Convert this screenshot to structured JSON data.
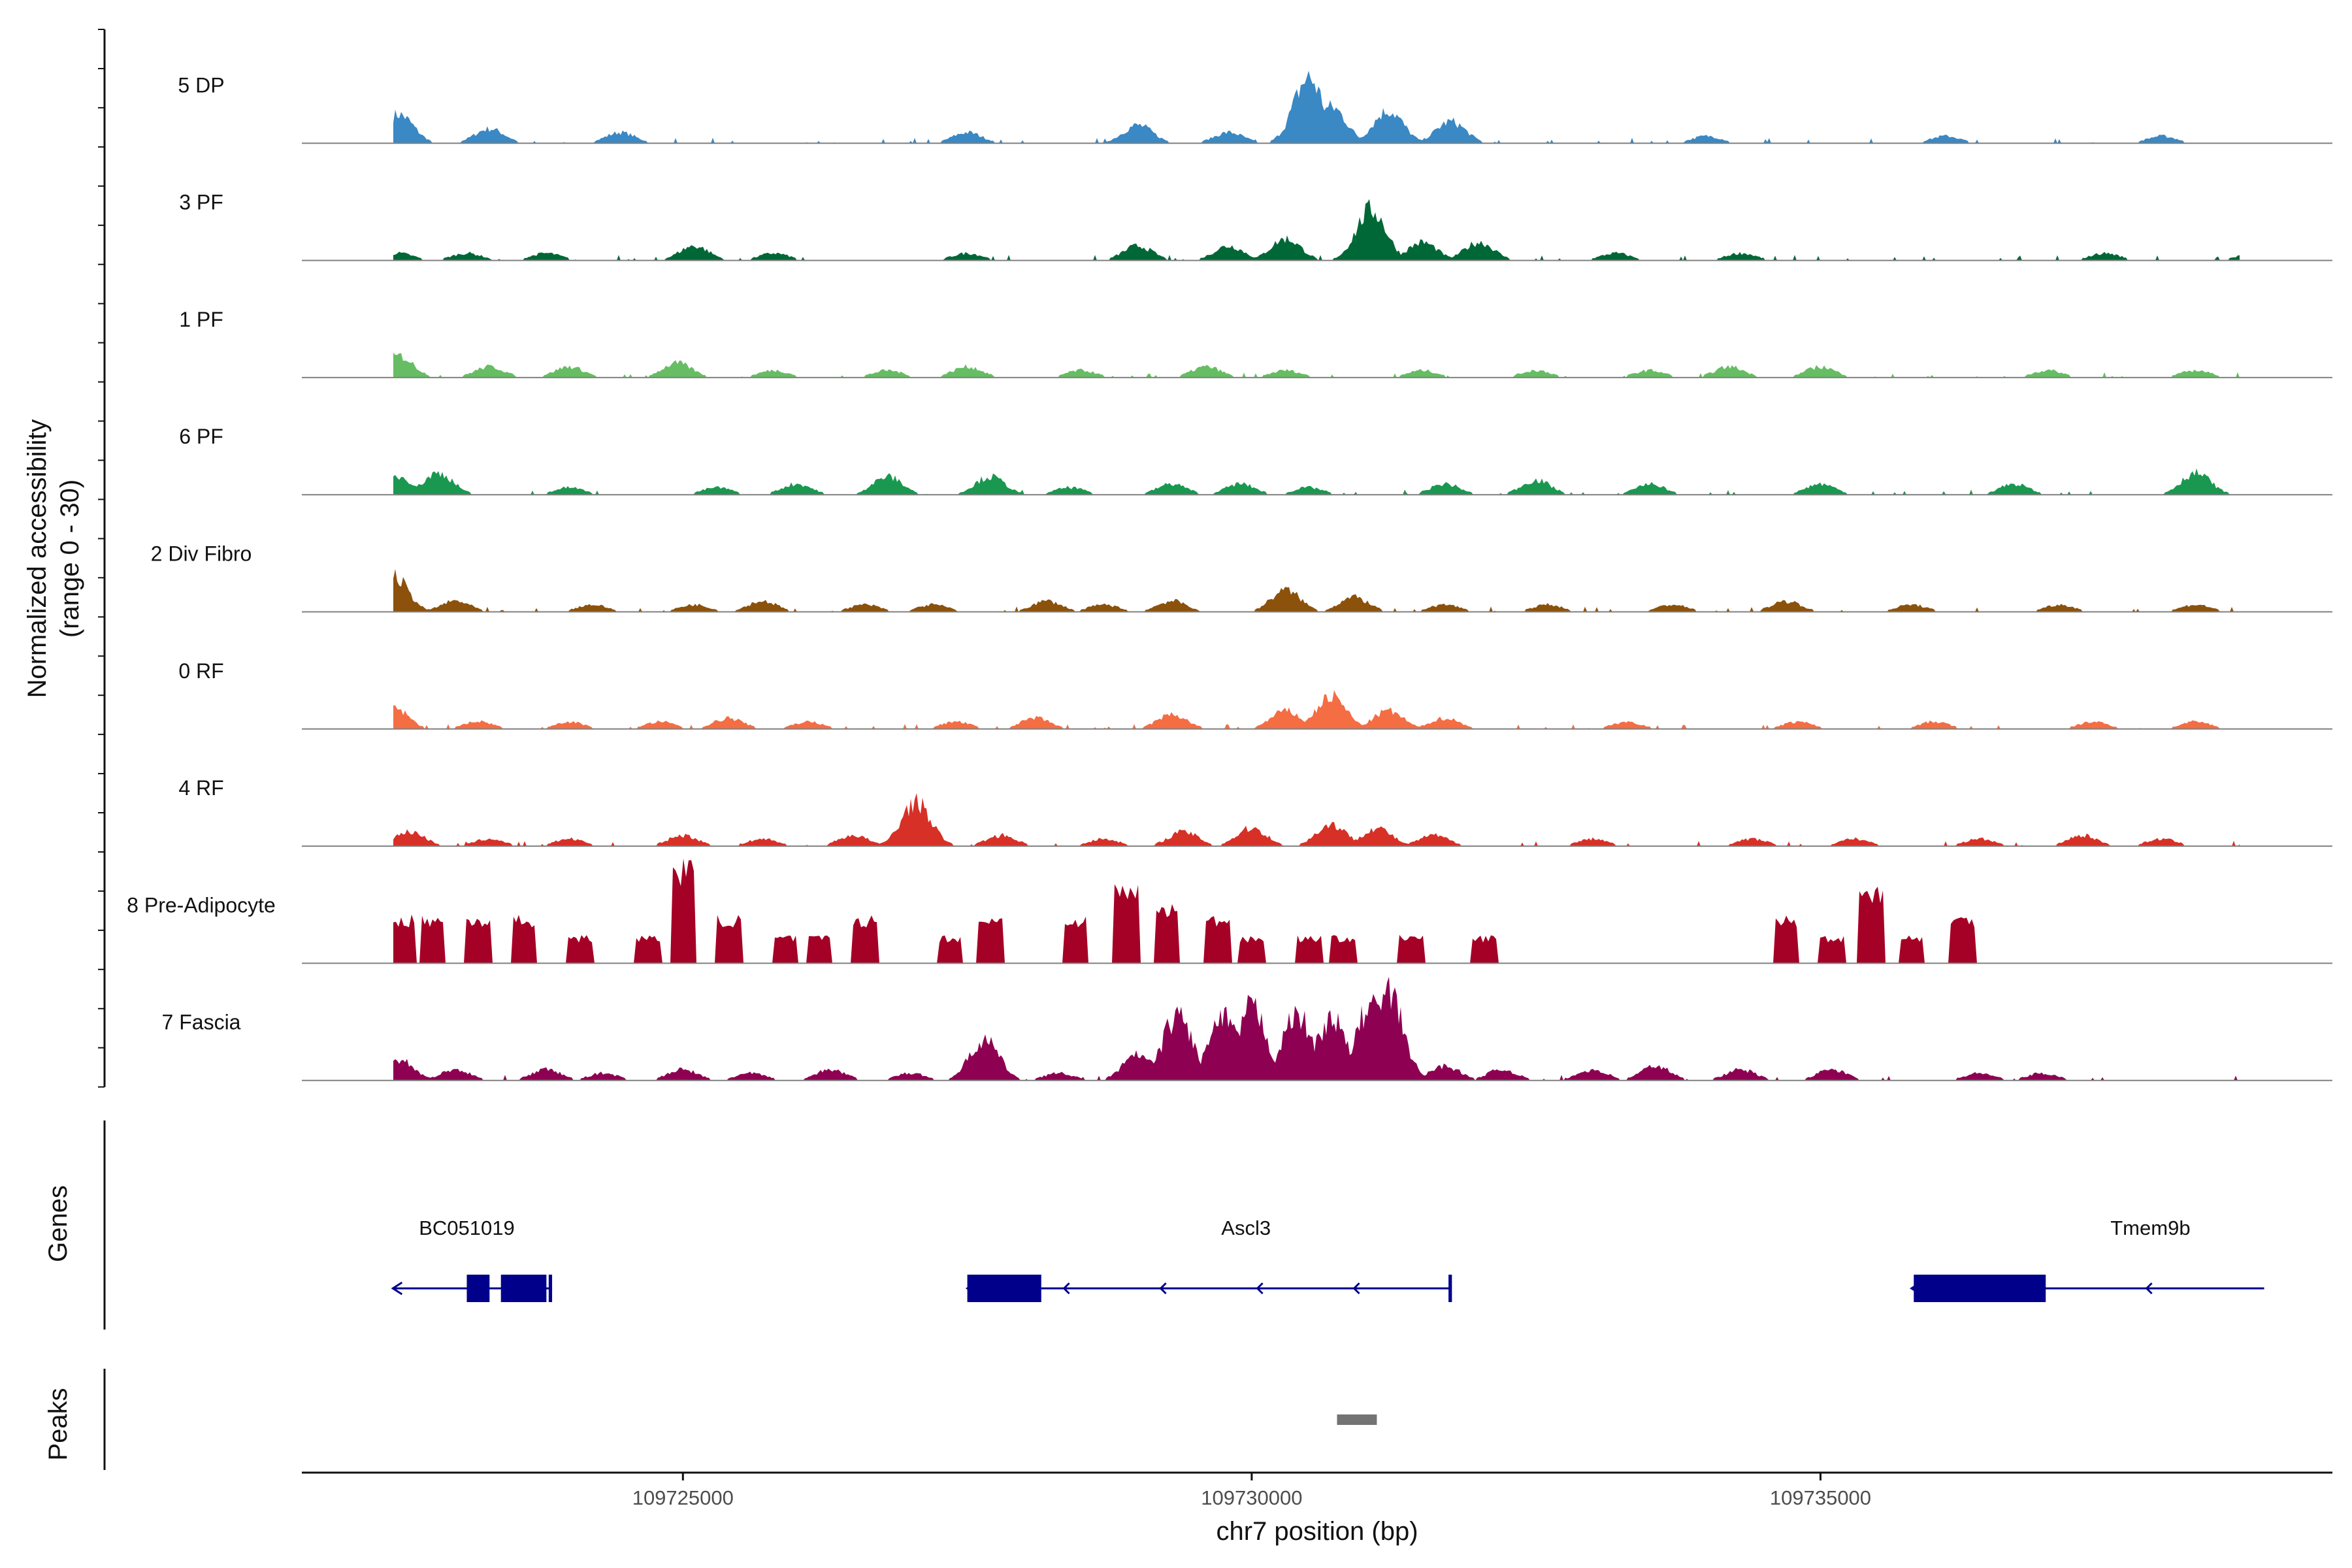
{
  "chart_data": {
    "type": "area",
    "title": "",
    "ylabel_line1": "Normalized accessibility",
    "ylabel_line2": "(range 0 - 30)",
    "xlabel": "chr7 position (bp)",
    "xlim": [
      109721650,
      109739500
    ],
    "xticks": [
      {
        "value": 109725000,
        "label": "109725000"
      },
      {
        "value": 109730000,
        "label": "109730000"
      },
      {
        "value": 109735000,
        "label": "109735000"
      }
    ],
    "ylim": [
      0,
      30
    ],
    "baseline_color": "#808080",
    "tracks": [
      {
        "name": "5 DP",
        "color": "#3A88C4",
        "peaks": [
          [
            109722500,
            8
          ],
          [
            109723300,
            4
          ],
          [
            109724450,
            3
          ],
          [
            109727500,
            3
          ],
          [
            109729000,
            5
          ],
          [
            109729800,
            3
          ],
          [
            109730500,
            18
          ],
          [
            109730700,
            10
          ],
          [
            109731200,
            9
          ],
          [
            109731750,
            6
          ],
          [
            109734000,
            2
          ],
          [
            109736100,
            2
          ],
          [
            109738000,
            2
          ]
        ]
      },
      {
        "name": "3 PF",
        "color": "#006837",
        "peaks": [
          [
            109722500,
            2
          ],
          [
            109723100,
            2
          ],
          [
            109723800,
            2
          ],
          [
            109725100,
            4
          ],
          [
            109725800,
            2
          ],
          [
            109727500,
            2
          ],
          [
            109729000,
            4
          ],
          [
            109729800,
            4
          ],
          [
            109730300,
            6
          ],
          [
            109731050,
            14
          ],
          [
            109731500,
            5
          ],
          [
            109732000,
            5
          ],
          [
            109733200,
            2
          ],
          [
            109734300,
            2
          ],
          [
            109737500,
            2
          ],
          [
            109738800,
            2
          ]
        ]
      },
      {
        "name": "1 PF",
        "color": "#66BD63",
        "peaks": [
          [
            109722500,
            6
          ],
          [
            109723300,
            3
          ],
          [
            109724000,
            3
          ],
          [
            109724950,
            4
          ],
          [
            109725800,
            2
          ],
          [
            109726800,
            2
          ],
          [
            109727500,
            3
          ],
          [
            109728500,
            2
          ],
          [
            109729600,
            3
          ],
          [
            109730300,
            2
          ],
          [
            109731500,
            2
          ],
          [
            109732500,
            2
          ],
          [
            109733500,
            2
          ],
          [
            109734200,
            3
          ],
          [
            109735000,
            3
          ],
          [
            109737000,
            2
          ],
          [
            109738300,
            2
          ]
        ]
      },
      {
        "name": "6 PF",
        "color": "#1A9850",
        "peaks": [
          [
            109722500,
            5
          ],
          [
            109722850,
            6
          ],
          [
            109724000,
            2
          ],
          [
            109725300,
            2
          ],
          [
            109726000,
            3
          ],
          [
            109726800,
            5
          ],
          [
            109727700,
            5
          ],
          [
            109728400,
            2
          ],
          [
            109729300,
            3
          ],
          [
            109729900,
            3
          ],
          [
            109730500,
            2
          ],
          [
            109731700,
            3
          ],
          [
            109732500,
            4
          ],
          [
            109733500,
            3
          ],
          [
            109735000,
            3
          ],
          [
            109736700,
            3
          ],
          [
            109738300,
            6
          ]
        ]
      },
      {
        "name": "2 Div Fibro",
        "color": "#8C510A",
        "peaks": [
          [
            109722450,
            10
          ],
          [
            109723000,
            3
          ],
          [
            109724200,
            2
          ],
          [
            109725100,
            2
          ],
          [
            109725700,
            3
          ],
          [
            109726600,
            2
          ],
          [
            109727200,
            2
          ],
          [
            109728200,
            3
          ],
          [
            109728700,
            2
          ],
          [
            109729300,
            3
          ],
          [
            109730300,
            6
          ],
          [
            109730900,
            4
          ],
          [
            109731700,
            2
          ],
          [
            109732600,
            2
          ],
          [
            109733700,
            2
          ],
          [
            109734700,
            3
          ],
          [
            109735800,
            2
          ],
          [
            109737100,
            2
          ],
          [
            109738300,
            2
          ]
        ]
      },
      {
        "name": "0 RF",
        "color": "#F46D43",
        "peaks": [
          [
            109722450,
            6
          ],
          [
            109723200,
            2
          ],
          [
            109724000,
            2
          ],
          [
            109724800,
            2
          ],
          [
            109725400,
            3
          ],
          [
            109726100,
            2
          ],
          [
            109727400,
            2
          ],
          [
            109728100,
            3
          ],
          [
            109729300,
            4
          ],
          [
            109730300,
            5
          ],
          [
            109730700,
            9
          ],
          [
            109731200,
            5
          ],
          [
            109731700,
            3
          ],
          [
            109733300,
            2
          ],
          [
            109734800,
            2
          ],
          [
            109736000,
            2
          ],
          [
            109737400,
            2
          ],
          [
            109738300,
            2
          ]
        ]
      },
      {
        "name": "4 RF",
        "color": "#D73027",
        "peaks": [
          [
            109722600,
            4
          ],
          [
            109723300,
            2
          ],
          [
            109724000,
            2
          ],
          [
            109725000,
            3
          ],
          [
            109725700,
            2
          ],
          [
            109726500,
            3
          ],
          [
            109727050,
            12
          ],
          [
            109727800,
            3
          ],
          [
            109728700,
            2
          ],
          [
            109729400,
            4
          ],
          [
            109730000,
            5
          ],
          [
            109730700,
            6
          ],
          [
            109731100,
            5
          ],
          [
            109731600,
            3
          ],
          [
            109733000,
            2
          ],
          [
            109734400,
            2
          ],
          [
            109735300,
            2
          ],
          [
            109736400,
            2
          ],
          [
            109737300,
            3
          ],
          [
            109738000,
            2
          ]
        ]
      },
      {
        "name": "8 Pre-Adipocyte",
        "color": "#A50026",
        "peaks": [
          [
            109722550,
            12
          ],
          [
            109722800,
            12
          ],
          [
            109723200,
            12
          ],
          [
            109723600,
            12
          ],
          [
            109724100,
            7
          ],
          [
            109724700,
            7
          ],
          [
            109725000,
            26
          ],
          [
            109725400,
            12
          ],
          [
            109725900,
            7
          ],
          [
            109726200,
            7
          ],
          [
            109726600,
            12
          ],
          [
            109727350,
            7
          ],
          [
            109727700,
            12
          ],
          [
            109728450,
            12
          ],
          [
            109728900,
            20
          ],
          [
            109729250,
            15
          ],
          [
            109729700,
            12
          ],
          [
            109730000,
            7
          ],
          [
            109730500,
            7
          ],
          [
            109730800,
            7
          ],
          [
            109731400,
            7
          ],
          [
            109732050,
            7
          ],
          [
            109734700,
            12
          ],
          [
            109735100,
            7
          ],
          [
            109735450,
            20
          ],
          [
            109735800,
            7
          ],
          [
            109736250,
            12
          ]
        ]
      },
      {
        "name": "7 Fascia",
        "color": "#8E0152",
        "peaks": [
          [
            109722500,
            6
          ],
          [
            109723000,
            3
          ],
          [
            109723800,
            3
          ],
          [
            109724300,
            2
          ],
          [
            109725000,
            3
          ],
          [
            109725600,
            2
          ],
          [
            109726300,
            3
          ],
          [
            109727000,
            2
          ],
          [
            109727650,
            11
          ],
          [
            109728300,
            2
          ],
          [
            109729000,
            7
          ],
          [
            109729350,
            18
          ],
          [
            109729750,
            17
          ],
          [
            109730000,
            20
          ],
          [
            109730400,
            18
          ],
          [
            109730700,
            17
          ],
          [
            109731050,
            21
          ],
          [
            109731200,
            24
          ],
          [
            109731700,
            4
          ],
          [
            109732200,
            3
          ],
          [
            109733000,
            3
          ],
          [
            109733550,
            4
          ],
          [
            109734300,
            3
          ],
          [
            109735100,
            3
          ],
          [
            109736400,
            2
          ],
          [
            109736950,
            2
          ]
        ]
      }
    ],
    "genes_track": {
      "label": "Genes",
      "color": "#00008B",
      "genes": [
        {
          "name": "BC051019",
          "strand": "-",
          "start": 109722450,
          "end": 109723850,
          "exons": [
            [
              109723100,
              109723300
            ],
            [
              109723400,
              109723800
            ],
            [
              109723820,
              109723850
            ]
          ]
        },
        {
          "name": "Ascl3",
          "strand": "-",
          "start": 109727500,
          "end": 109731750,
          "exons": [
            [
              109727500,
              109728150
            ],
            [
              109731730,
              109731760
            ]
          ]
        },
        {
          "name": "Tmem9b",
          "strand": "-",
          "start": 109735800,
          "end": 109738900,
          "exons": [
            [
              109735820,
              109736980
            ]
          ]
        }
      ]
    },
    "peaks_track": {
      "label": "Peaks",
      "color": "#737373",
      "regions": [
        [
          109730750,
          109731100
        ]
      ]
    }
  }
}
